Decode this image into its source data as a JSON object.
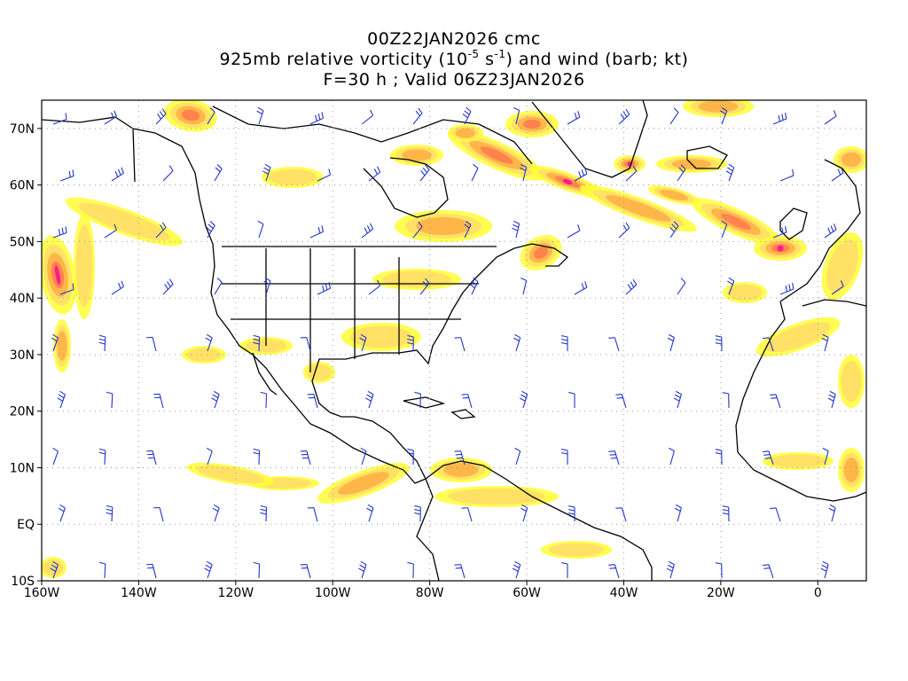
{
  "header": {
    "line1": "00Z22JAN2026 cmc",
    "line2_a": "925mb relative vorticity (10",
    "line2_exp1": "-5",
    "line2_b": " s",
    "line2_exp2": "-1",
    "line2_c": ") and wind (barb; kt)",
    "line3": "F=30 h ; Valid 06Z23JAN2026"
  },
  "axes": {
    "lat_labels": [
      "70N",
      "60N",
      "50N",
      "40N",
      "30N",
      "20N",
      "10N",
      "EQ",
      "10S"
    ],
    "lon_labels": [
      "160W",
      "140W",
      "120W",
      "100W",
      "80W",
      "60W",
      "40W",
      "20W",
      "0"
    ]
  },
  "colors": {
    "vort_weak": "#ffff33",
    "vort_light": "#ffe066",
    "vort_mid": "#ffb347",
    "vort_strong": "#ff7f50",
    "vort_peak": "#ff1493",
    "vort_max": "#cc00cc",
    "barbs": "#2233cc",
    "coast": "#000000",
    "grid": "#999999"
  }
}
